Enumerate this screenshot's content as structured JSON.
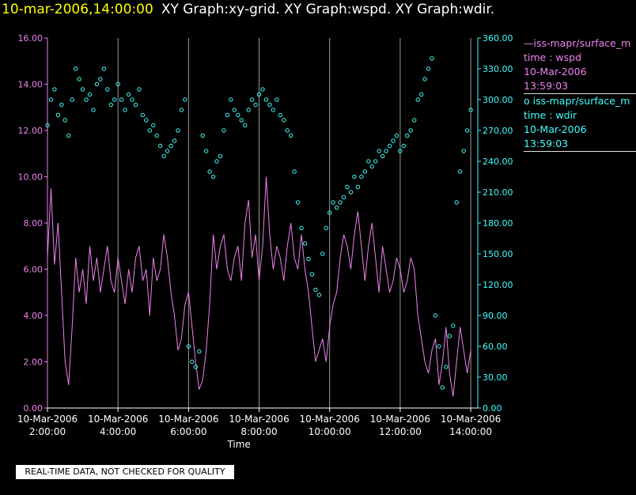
{
  "header": {
    "date": "10-mar-2006,14:00:00",
    "graphs": "XY Graph:xy-grid.  XY Graph:wspd.  XY Graph:wdir."
  },
  "legend": {
    "wspd": {
      "series": "iss-mapr/surface_m",
      "var": "time : wspd",
      "date": "10-Mar-2006",
      "time": "13:59:03",
      "color": "#ee82ee"
    },
    "wdir": {
      "series": "iss-mapr/surface_m",
      "var": "time : wdir",
      "date": "10-Mar-2006",
      "time": "13:59:03",
      "color": "#40ffff"
    }
  },
  "footer": {
    "quality_note": "REAL-TIME DATA, NOT CHECKED FOR QUALITY"
  },
  "chart_data": {
    "type": "line",
    "xlabel": "Time",
    "x_ticks": [
      {
        "date": "10-Mar-2006",
        "time": "2:00:00",
        "hour": 2
      },
      {
        "date": "10-Mar-2006",
        "time": "4:00:00",
        "hour": 4
      },
      {
        "date": "10-Mar-2006",
        "time": "6:00:00",
        "hour": 6
      },
      {
        "date": "10-Mar-2006",
        "time": "8:00:00",
        "hour": 8
      },
      {
        "date": "10-Mar-2006",
        "time": "10:00:00",
        "hour": 10
      },
      {
        "date": "10-Mar-2006",
        "time": "12:00:00",
        "hour": 12
      },
      {
        "date": "10-Mar-2006",
        "time": "14:00:00",
        "hour": 14
      }
    ],
    "xlim": [
      2,
      14.2
    ],
    "y_left": {
      "ylim": [
        0,
        16
      ],
      "ticks": [
        "0.00",
        "2.00",
        "4.00",
        "6.00",
        "8.00",
        "10.00",
        "12.00",
        "14.00",
        "16.00"
      ],
      "color": "#ee82ee"
    },
    "y_right": {
      "ylim": [
        0,
        360
      ],
      "ticks": [
        "0.00",
        "30.00",
        "60.00",
        "90.00",
        "120.00",
        "150.00",
        "180.00",
        "210.00",
        "240.00",
        "270.00",
        "300.00",
        "330.00",
        "360.00"
      ],
      "color": "#40ffff"
    },
    "grid": "vertical",
    "series": [
      {
        "key": "wspd",
        "style": "line",
        "color": "#ee82ee",
        "axis": "left",
        "x": [
          2.0,
          2.1,
          2.2,
          2.3,
          2.4,
          2.5,
          2.6,
          2.7,
          2.8,
          2.9,
          3.0,
          3.1,
          3.2,
          3.3,
          3.4,
          3.5,
          3.6,
          3.7,
          3.8,
          3.9,
          4.0,
          4.1,
          4.2,
          4.3,
          4.4,
          4.5,
          4.6,
          4.7,
          4.8,
          4.9,
          5.0,
          5.1,
          5.2,
          5.3,
          5.4,
          5.5,
          5.6,
          5.7,
          5.8,
          5.9,
          6.0,
          6.1,
          6.2,
          6.3,
          6.4,
          6.5,
          6.6,
          6.7,
          6.8,
          6.9,
          7.0,
          7.1,
          7.2,
          7.3,
          7.4,
          7.5,
          7.6,
          7.7,
          7.8,
          7.9,
          8.0,
          8.1,
          8.2,
          8.3,
          8.4,
          8.5,
          8.6,
          8.7,
          8.8,
          8.9,
          9.0,
          9.1,
          9.2,
          9.3,
          9.4,
          9.5,
          9.6,
          9.7,
          9.8,
          9.9,
          10.0,
          10.1,
          10.2,
          10.3,
          10.4,
          10.5,
          10.6,
          10.7,
          10.8,
          10.9,
          11.0,
          11.1,
          11.2,
          11.3,
          11.4,
          11.5,
          11.6,
          11.7,
          11.8,
          11.9,
          12.0,
          12.1,
          12.2,
          12.3,
          12.4,
          12.5,
          12.6,
          12.7,
          12.8,
          12.9,
          13.0,
          13.1,
          13.2,
          13.3,
          13.4,
          13.5,
          13.6,
          13.7,
          13.8,
          13.9,
          14.0
        ],
        "y": [
          6.5,
          9.5,
          6.2,
          8.0,
          5.0,
          2.0,
          1.0,
          3.5,
          6.5,
          5.0,
          6.0,
          4.5,
          7.0,
          5.5,
          6.5,
          5.0,
          6.0,
          7.0,
          5.5,
          5.0,
          6.5,
          5.5,
          4.5,
          6.0,
          5.0,
          6.5,
          7.0,
          5.5,
          6.0,
          4.0,
          6.5,
          5.5,
          6.0,
          7.5,
          6.5,
          5.0,
          4.0,
          2.5,
          3.0,
          4.5,
          5.0,
          3.5,
          2.0,
          0.8,
          1.2,
          2.5,
          4.5,
          7.5,
          6.0,
          7.0,
          7.5,
          6.0,
          5.5,
          6.5,
          7.0,
          5.5,
          8.0,
          9.0,
          6.5,
          7.5,
          5.5,
          7.0,
          10.0,
          7.5,
          6.0,
          7.0,
          6.5,
          5.5,
          7.0,
          8.0,
          6.5,
          6.0,
          7.5,
          6.0,
          5.0,
          3.5,
          2.0,
          2.5,
          3.0,
          2.0,
          3.5,
          4.5,
          5.0,
          6.5,
          7.5,
          7.0,
          6.0,
          7.5,
          8.5,
          7.0,
          5.5,
          7.0,
          8.0,
          6.5,
          5.0,
          7.0,
          6.0,
          5.0,
          5.5,
          6.5,
          6.0,
          5.0,
          5.5,
          6.5,
          6.0,
          4.0,
          3.0,
          2.0,
          1.5,
          2.5,
          3.0,
          1.0,
          2.0,
          3.5,
          1.5,
          0.5,
          2.0,
          3.5,
          2.5,
          1.5,
          2.5
        ]
      },
      {
        "key": "wdir",
        "style": "points",
        "color": "#40ffff",
        "axis": "right",
        "x": [
          2.0,
          2.1,
          2.2,
          2.3,
          2.4,
          2.5,
          2.6,
          2.7,
          2.8,
          2.9,
          3.0,
          3.1,
          3.2,
          3.3,
          3.4,
          3.5,
          3.6,
          3.7,
          3.8,
          3.9,
          4.0,
          4.1,
          4.2,
          4.3,
          4.4,
          4.5,
          4.6,
          4.7,
          4.8,
          4.9,
          5.0,
          5.1,
          5.2,
          5.3,
          5.4,
          5.5,
          5.6,
          5.7,
          5.8,
          5.9,
          6.0,
          6.1,
          6.2,
          6.3,
          6.4,
          6.5,
          6.6,
          6.7,
          6.8,
          6.9,
          7.0,
          7.1,
          7.2,
          7.3,
          7.4,
          7.5,
          7.6,
          7.7,
          7.8,
          7.9,
          8.0,
          8.1,
          8.2,
          8.3,
          8.4,
          8.5,
          8.6,
          8.7,
          8.8,
          8.9,
          9.0,
          9.1,
          9.2,
          9.3,
          9.4,
          9.5,
          9.6,
          9.7,
          9.8,
          9.9,
          10.0,
          10.1,
          10.2,
          10.3,
          10.4,
          10.5,
          10.6,
          10.7,
          10.8,
          10.9,
          11.0,
          11.1,
          11.2,
          11.3,
          11.4,
          11.5,
          11.6,
          11.7,
          11.8,
          11.9,
          12.0,
          12.1,
          12.2,
          12.3,
          12.4,
          12.5,
          12.6,
          12.7,
          12.8,
          12.9,
          13.0,
          13.1,
          13.2,
          13.3,
          13.4,
          13.5,
          13.6,
          13.7,
          13.8,
          13.9,
          14.0
        ],
        "y": [
          275,
          300,
          310,
          285,
          295,
          280,
          265,
          300,
          330,
          320,
          310,
          300,
          305,
          290,
          315,
          320,
          330,
          310,
          295,
          300,
          315,
          300,
          290,
          305,
          300,
          295,
          310,
          285,
          280,
          270,
          275,
          265,
          255,
          245,
          250,
          255,
          260,
          270,
          290,
          300,
          60,
          45,
          40,
          55,
          265,
          250,
          230,
          225,
          240,
          245,
          270,
          285,
          300,
          290,
          285,
          280,
          275,
          290,
          300,
          295,
          305,
          310,
          300,
          295,
          290,
          300,
          285,
          280,
          270,
          265,
          230,
          200,
          175,
          160,
          145,
          130,
          115,
          110,
          150,
          175,
          190,
          200,
          195,
          200,
          205,
          215,
          210,
          225,
          215,
          225,
          230,
          240,
          235,
          240,
          250,
          245,
          250,
          255,
          260,
          265,
          250,
          255,
          265,
          270,
          280,
          300,
          305,
          320,
          330,
          340,
          90,
          60,
          20,
          40,
          70,
          80,
          200,
          230,
          250,
          270,
          290
        ]
      }
    ]
  }
}
